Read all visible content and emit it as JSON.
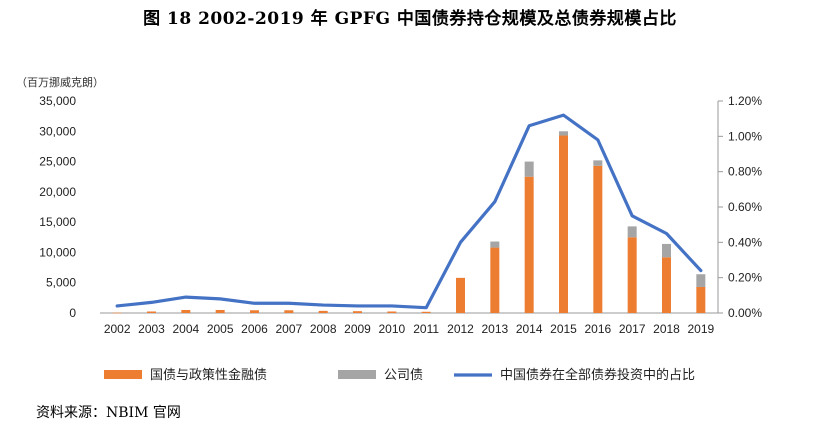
{
  "title": "图 18   2002-2019 年 GPFG 中国债券持仓规模及总债券规模占比",
  "source": "资料来源：NBIM 官网",
  "chart_data": {
    "type": "bar",
    "stacked": true,
    "categories": [
      "2002",
      "2003",
      "2004",
      "2005",
      "2006",
      "2007",
      "2008",
      "2009",
      "2010",
      "2011",
      "2012",
      "2013",
      "2014",
      "2015",
      "2016",
      "2017",
      "2018",
      "2019"
    ],
    "y_unit_label": "（百万挪威克朗）",
    "y_left": {
      "min": 0,
      "max": 35000,
      "ticks": [
        "0",
        "5,000",
        "10,000",
        "15,000",
        "20,000",
        "25,000",
        "30,000",
        "35,000"
      ]
    },
    "y_right": {
      "min": 0,
      "max": 1.2,
      "ticks": [
        "0.00%",
        "0.20%",
        "0.40%",
        "0.60%",
        "0.80%",
        "1.00%",
        "1.20%"
      ]
    },
    "series": [
      {
        "name": "国债与政策性金融债",
        "kind": "bar",
        "axis": "left",
        "color": "#ED7D31",
        "values": [
          50,
          250,
          500,
          500,
          450,
          450,
          350,
          300,
          250,
          200,
          5800,
          10800,
          22500,
          29300,
          24300,
          12500,
          9200,
          4300
        ]
      },
      {
        "name": "公司债",
        "kind": "bar",
        "axis": "left",
        "color": "#A5A5A5",
        "values": [
          0,
          0,
          0,
          0,
          0,
          0,
          0,
          0,
          0,
          0,
          0,
          1000,
          2500,
          700,
          900,
          1800,
          2200,
          2100
        ]
      },
      {
        "name": "中国债券在全部债券投资中的占比",
        "kind": "line",
        "axis": "right",
        "color": "#4472C4",
        "values": [
          0.04,
          0.06,
          0.09,
          0.08,
          0.055,
          0.055,
          0.045,
          0.04,
          0.04,
          0.03,
          0.4,
          0.63,
          1.06,
          1.12,
          0.98,
          0.55,
          0.45,
          0.24
        ]
      }
    ],
    "grid": false,
    "legend_position": "bottom"
  }
}
